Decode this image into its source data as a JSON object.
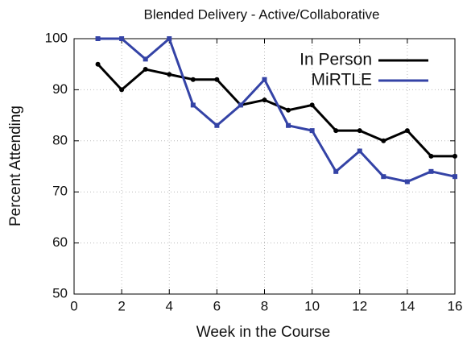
{
  "chart_data": {
    "type": "line",
    "title": "Blended Delivery -  Active/Collaborative",
    "x_label": "Week in the Course",
    "y_label": "Percent Attending",
    "x": [
      1,
      2,
      3,
      4,
      5,
      6,
      7,
      8,
      9,
      10,
      11,
      12,
      13,
      14,
      15,
      16
    ],
    "series": [
      {
        "name": "In Person",
        "color": "#000000",
        "values": [
          95,
          90,
          94,
          93,
          92,
          92,
          87,
          88,
          86,
          87,
          82,
          82,
          80,
          82,
          77,
          77
        ]
      },
      {
        "name": "MiRTLE",
        "color": "#3443a6",
        "values": [
          100,
          100,
          96,
          100,
          87,
          83,
          87,
          92,
          83,
          82,
          74,
          78,
          73,
          72,
          74,
          73
        ]
      }
    ],
    "xlim": [
      0,
      16
    ],
    "xticks": [
      0,
      2,
      4,
      6,
      8,
      10,
      12,
      14,
      16
    ],
    "ylim": [
      50,
      100
    ],
    "yticks": [
      50,
      60,
      70,
      80,
      90,
      100
    ],
    "grid": true,
    "legend": "upper right"
  }
}
